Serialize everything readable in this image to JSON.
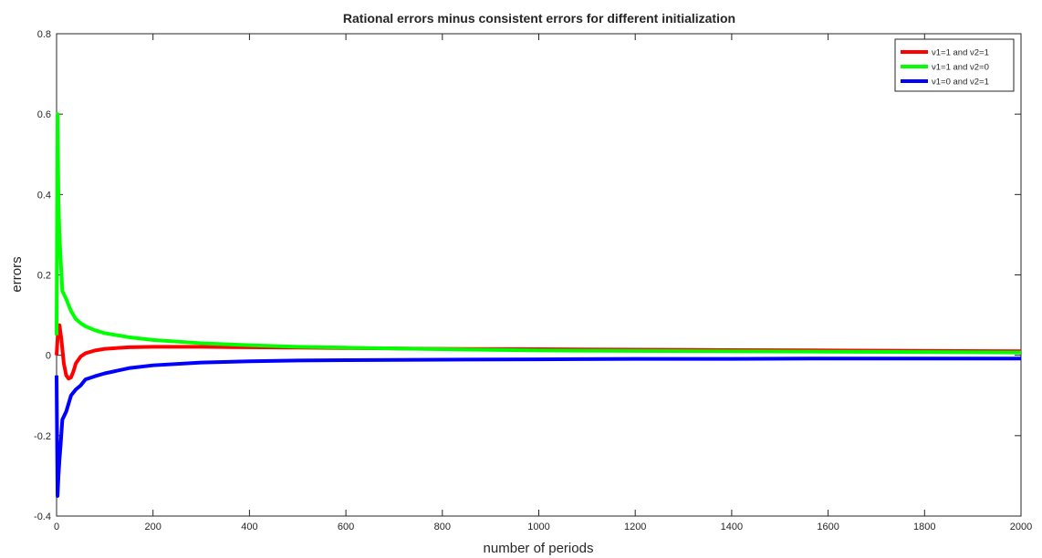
{
  "chart_data": {
    "type": "line",
    "title": "Rational errors minus consistent errors for different initialization",
    "xlabel": "number of periods",
    "ylabel": "errors",
    "xlim": [
      0,
      2000
    ],
    "ylim": [
      -0.4,
      0.8
    ],
    "xticks": [
      "0",
      "200",
      "400",
      "600",
      "800",
      "1000",
      "1200",
      "1400",
      "1600",
      "1800",
      "2000"
    ],
    "yticks": [
      "-0.4",
      "-0.2",
      "0",
      "0.2",
      "0.4",
      "0.6",
      "0.8"
    ],
    "grid": false,
    "legend_position": "top-right",
    "series": [
      {
        "name": "ν1=1 and ν2=1",
        "color": "#ff0000",
        "x": [
          0,
          3,
          6,
          10,
          15,
          20,
          25,
          30,
          35,
          40,
          50,
          60,
          80,
          100,
          150,
          200,
          300,
          400,
          500,
          600,
          800,
          1000,
          1200,
          1400,
          1600,
          1800,
          2000
        ],
        "y": [
          0.0,
          0.06,
          0.075,
          0.04,
          -0.02,
          -0.05,
          -0.058,
          -0.055,
          -0.04,
          -0.02,
          -0.003,
          0.005,
          0.012,
          0.016,
          0.02,
          0.021,
          0.021,
          0.02,
          0.019,
          0.018,
          0.016,
          0.015,
          0.014,
          0.013,
          0.012,
          0.011,
          0.01
        ]
      },
      {
        "name": "ν1=1 and ν2=0",
        "color": "#00ff00",
        "x": [
          0,
          2,
          4,
          6,
          8,
          12,
          20,
          30,
          40,
          50,
          60,
          80,
          100,
          150,
          200,
          300,
          400,
          500,
          600,
          800,
          1000,
          1200,
          1400,
          1600,
          1800,
          2000
        ],
        "y": [
          0.05,
          0.6,
          0.38,
          0.3,
          0.25,
          0.16,
          0.14,
          0.11,
          0.09,
          0.08,
          0.072,
          0.062,
          0.055,
          0.045,
          0.038,
          0.03,
          0.025,
          0.021,
          0.019,
          0.015,
          0.012,
          0.011,
          0.01,
          0.009,
          0.008,
          0.007
        ]
      },
      {
        "name": "ν1=0 and ν2=1",
        "color": "#0000ff",
        "x": [
          0,
          2,
          4,
          6,
          8,
          12,
          20,
          30,
          40,
          50,
          60,
          80,
          100,
          150,
          200,
          300,
          400,
          500,
          600,
          800,
          1000,
          1200,
          1400,
          1600,
          1800,
          2000
        ],
        "y": [
          -0.05,
          -0.35,
          -0.3,
          -0.26,
          -0.23,
          -0.16,
          -0.14,
          -0.1,
          -0.085,
          -0.075,
          -0.06,
          -0.052,
          -0.045,
          -0.032,
          -0.025,
          -0.018,
          -0.015,
          -0.013,
          -0.012,
          -0.011,
          -0.01,
          -0.009,
          -0.009,
          -0.008,
          -0.008,
          -0.008
        ]
      }
    ]
  }
}
